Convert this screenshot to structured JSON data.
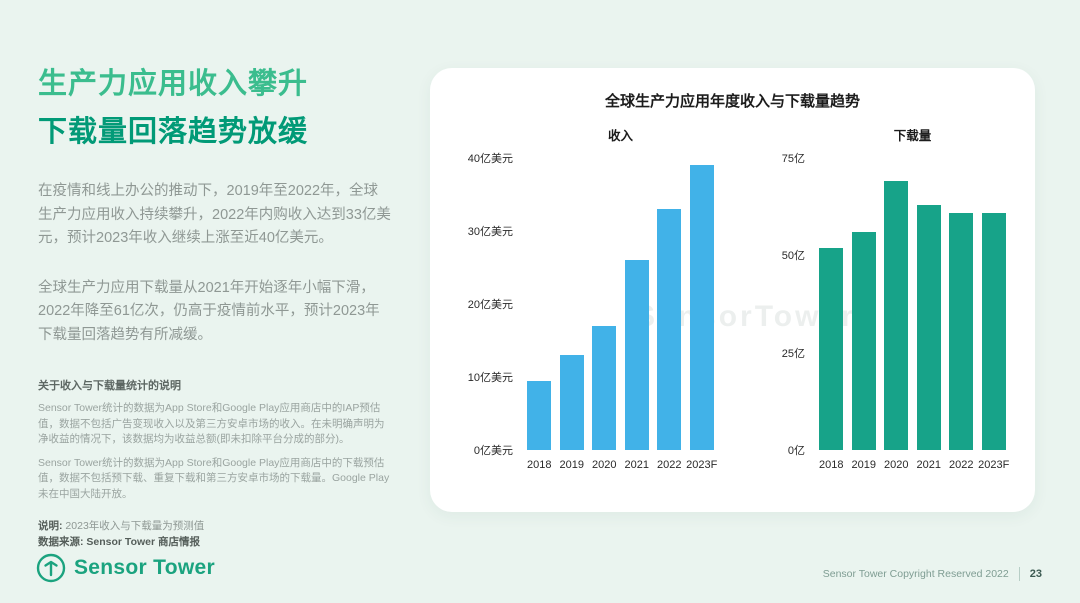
{
  "slide": {
    "title_line1": "生产力应用收入攀升",
    "title_line2": "下载量回落趋势放缓",
    "paragraph1": "在疫情和线上办公的推动下，2019年至2022年，全球生产力应用收入持续攀升，2022年内购收入达到33亿美元，预计2023年收入继续上涨至近40亿美元。",
    "paragraph2": "全球生产力应用下载量从2021年开始逐年小幅下滑，2022年降至61亿次，仍高于疫情前水平，预计2023年下载量回落趋势有所减缓。",
    "notes_heading": "关于收入与下载量统计的说明",
    "note1": "Sensor Tower统计的数据为App Store和Google Play应用商店中的IAP预估值，数据不包括广告变现收入以及第三方安卓市场的收入。在未明确声明为净收益的情况下，该数据均为收益总额(即未扣除平台分成的部分)。",
    "note2": "Sensor Tower统计的数据为App Store和Google Play应用商店中的下载预估值，数据不包括预下载、重复下载和第三方安卓市场的下载量。Google Play未在中国大陆开放。",
    "legend_label": "说明:",
    "legend_value": "2023年收入与下载量为预测值",
    "source_label": "数据来源:",
    "source_value": "Sensor Tower 商店情报",
    "logo_text": "Sensor Tower",
    "watermark": "SensorTower",
    "footer_copyright": "Sensor Tower Copyright Reserved 2022",
    "footer_page": "23",
    "colors": {
      "title_green_light": "#3bbd8e",
      "title_green_dark": "#019a77",
      "revenue_bar": "#41b2e8",
      "downloads_bar": "#17a389",
      "logo_green": "#1ba37f"
    }
  },
  "chart_data": [
    {
      "type": "bar",
      "title": "全球生产力应用年度收入与下载量趋势",
      "name": "收入",
      "categories": [
        "2018",
        "2019",
        "2020",
        "2021",
        "2022",
        "2023F"
      ],
      "values": [
        9.5,
        13,
        17,
        26,
        33,
        39
      ],
      "unit": "亿美元",
      "ylim": [
        0,
        40
      ],
      "yticks": [
        {
          "value": 0,
          "label": "0亿美元"
        },
        {
          "value": 10,
          "label": "10亿美元"
        },
        {
          "value": 20,
          "label": "20亿美元"
        },
        {
          "value": 30,
          "label": "30亿美元"
        },
        {
          "value": 40,
          "label": "40亿美元"
        }
      ],
      "bar_color": "#41b2e8",
      "grid": false,
      "legend_position": "none"
    },
    {
      "type": "bar",
      "name": "下载量",
      "categories": [
        "2018",
        "2019",
        "2020",
        "2021",
        "2022",
        "2023F"
      ],
      "values": [
        52,
        56,
        69,
        63,
        61,
        61
      ],
      "unit": "亿",
      "ylim": [
        0,
        75
      ],
      "yticks": [
        {
          "value": 0,
          "label": "0亿"
        },
        {
          "value": 25,
          "label": "25亿"
        },
        {
          "value": 50,
          "label": "50亿"
        },
        {
          "value": 75,
          "label": "75亿"
        }
      ],
      "bar_color": "#17a389",
      "grid": false,
      "legend_position": "none"
    }
  ]
}
